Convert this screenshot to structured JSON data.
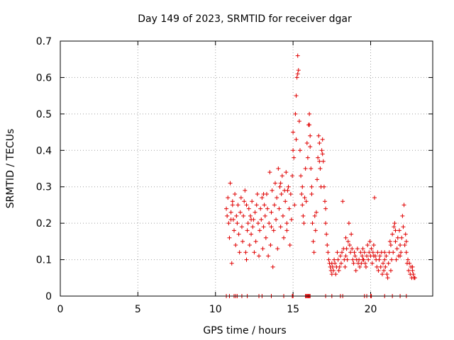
{
  "chart_data": {
    "type": "scatter",
    "title": "Day 149 of 2023, SRMTID for receiver dgar",
    "xlabel": "GPS time / hours",
    "ylabel": "SRMTID / TECUs",
    "xlim": [
      0,
      24
    ],
    "ylim": [
      0,
      0.7
    ],
    "xticks": [
      0,
      5,
      10,
      15,
      20
    ],
    "xtick_labels": [
      "0",
      "5",
      "10",
      "15",
      "20"
    ],
    "yticks": [
      0,
      0.1,
      0.2,
      0.3,
      0.4,
      0.5,
      0.6,
      0.7
    ],
    "ytick_labels": [
      "0",
      "0.1",
      "0.2",
      "0.3",
      "0.4",
      "0.5",
      "0.6",
      "0.7"
    ],
    "grid": true,
    "marker": "+",
    "marker_color": "#e00000",
    "series": [
      {
        "name": "SRMTID",
        "points": [
          [
            10.7,
            0.24
          ],
          [
            10.75,
            0.22
          ],
          [
            10.8,
            0.27
          ],
          [
            10.85,
            0.2
          ],
          [
            10.9,
            0.16
          ],
          [
            10.95,
            0.31
          ],
          [
            11.0,
            0.23
          ],
          [
            11.05,
            0.09
          ],
          [
            11.1,
            0.25
          ],
          [
            11.15,
            0.21
          ],
          [
            11.2,
            0.18
          ],
          [
            11.25,
            0.28
          ],
          [
            11.3,
            0.14
          ],
          [
            11.35,
            0.22
          ],
          [
            11.4,
            0.2
          ],
          [
            11.45,
            0.25
          ],
          [
            11.5,
            0.17
          ],
          [
            11.55,
            0.12
          ],
          [
            11.6,
            0.23
          ],
          [
            11.65,
            0.27
          ],
          [
            11.7,
            0.19
          ],
          [
            11.75,
            0.15
          ],
          [
            11.8,
            0.22
          ],
          [
            11.85,
            0.26
          ],
          [
            11.9,
            0.29
          ],
          [
            11.95,
            0.12
          ],
          [
            12.0,
            0.1
          ],
          [
            12.05,
            0.18
          ],
          [
            12.1,
            0.2
          ],
          [
            12.15,
            0.24
          ],
          [
            12.2,
            0.14
          ],
          [
            12.25,
            0.22
          ],
          [
            12.3,
            0.17
          ],
          [
            12.35,
            0.26
          ],
          [
            12.4,
            0.19
          ],
          [
            12.45,
            0.21
          ],
          [
            12.5,
            0.12
          ],
          [
            12.55,
            0.23
          ],
          [
            12.6,
            0.15
          ],
          [
            12.65,
            0.25
          ],
          [
            12.7,
            0.28
          ],
          [
            12.75,
            0.2
          ],
          [
            12.8,
            0.11
          ],
          [
            12.85,
            0.18
          ],
          [
            12.9,
            0.24
          ],
          [
            12.95,
            0.21
          ],
          [
            13.0,
            0.27
          ],
          [
            13.05,
            0.13
          ],
          [
            13.1,
            0.19
          ],
          [
            13.15,
            0.25
          ],
          [
            13.2,
            0.22
          ],
          [
            13.25,
            0.16
          ],
          [
            13.3,
            0.28
          ],
          [
            13.35,
            0.24
          ],
          [
            13.4,
            0.11
          ],
          [
            13.45,
            0.2
          ],
          [
            13.5,
            0.34
          ],
          [
            13.55,
            0.14
          ],
          [
            13.6,
            0.23
          ],
          [
            13.65,
            0.29
          ],
          [
            13.7,
            0.08
          ],
          [
            13.75,
            0.18
          ],
          [
            13.8,
            0.25
          ],
          [
            13.85,
            0.31
          ],
          [
            13.9,
            0.21
          ],
          [
            13.95,
            0.27
          ],
          [
            14.0,
            0.13
          ],
          [
            14.05,
            0.35
          ],
          [
            14.1,
            0.24
          ],
          [
            14.15,
            0.3
          ],
          [
            14.2,
            0.19
          ],
          [
            14.25,
            0.28
          ],
          [
            14.3,
            0.33
          ],
          [
            14.35,
            0.22
          ],
          [
            14.4,
            0.16
          ],
          [
            14.45,
            0.29
          ],
          [
            14.5,
            0.26
          ],
          [
            14.55,
            0.34
          ],
          [
            14.6,
            0.2
          ],
          [
            14.65,
            0.29
          ],
          [
            14.7,
            0.3
          ],
          [
            14.75,
            0.24
          ],
          [
            14.8,
            0.14
          ],
          [
            14.85,
            0.28
          ],
          [
            14.9,
            0.21
          ],
          [
            14.95,
            0.33
          ],
          [
            15.0,
            0.45
          ],
          [
            15.05,
            0.38
          ],
          [
            15.1,
            0.25
          ],
          [
            15.15,
            0.5
          ],
          [
            15.2,
            0.55
          ],
          [
            15.25,
            0.6
          ],
          [
            15.3,
            0.66
          ],
          [
            15.35,
            0.62
          ],
          [
            15.4,
            0.48
          ],
          [
            15.45,
            0.4
          ],
          [
            15.5,
            0.33
          ],
          [
            15.55,
            0.28
          ],
          [
            15.6,
            0.3
          ],
          [
            15.65,
            0.22
          ],
          [
            15.7,
            0.2
          ],
          [
            15.75,
            0.27
          ],
          [
            15.8,
            0.35
          ],
          [
            15.85,
            0.26
          ],
          [
            15.9,
            0.42
          ],
          [
            15.95,
            0.38
          ],
          [
            16.0,
            0.47
          ],
          [
            16.05,
            0.5
          ],
          [
            16.1,
            0.44
          ],
          [
            16.15,
            0.35
          ],
          [
            16.2,
            0.28
          ],
          [
            16.25,
            0.2
          ],
          [
            16.3,
            0.15
          ],
          [
            16.35,
            0.12
          ],
          [
            16.4,
            0.22
          ],
          [
            16.45,
            0.18
          ],
          [
            16.5,
            0.23
          ],
          [
            16.55,
            0.32
          ],
          [
            16.6,
            0.38
          ],
          [
            16.65,
            0.44
          ],
          [
            16.7,
            0.42
          ],
          [
            16.75,
            0.35
          ],
          [
            16.8,
            0.3
          ],
          [
            16.85,
            0.4
          ],
          [
            16.9,
            0.43
          ],
          [
            16.95,
            0.37
          ],
          [
            17.0,
            0.3
          ],
          [
            17.05,
            0.26
          ],
          [
            17.1,
            0.2
          ],
          [
            17.15,
            0.17
          ],
          [
            17.2,
            0.14
          ],
          [
            17.25,
            0.12
          ],
          [
            17.3,
            0.1
          ],
          [
            17.35,
            0.09
          ],
          [
            17.4,
            0.08
          ],
          [
            17.45,
            0.07
          ],
          [
            17.5,
            0.06
          ],
          [
            17.55,
            0.08
          ],
          [
            17.6,
            0.07
          ],
          [
            17.65,
            0.1
          ],
          [
            17.7,
            0.09
          ],
          [
            17.75,
            0.06
          ],
          [
            17.8,
            0.08
          ],
          [
            17.85,
            0.12
          ],
          [
            17.9,
            0.1
          ],
          [
            17.95,
            0.07
          ],
          [
            18.0,
            0.08
          ],
          [
            18.05,
            0.11
          ],
          [
            18.1,
            0.09
          ],
          [
            18.15,
            0.12
          ],
          [
            18.2,
            0.26
          ],
          [
            18.25,
            0.13
          ],
          [
            18.3,
            0.1
          ],
          [
            18.35,
            0.08
          ],
          [
            18.4,
            0.11
          ],
          [
            18.45,
            0.13
          ],
          [
            18.5,
            0.1
          ],
          [
            18.55,
            0.15
          ],
          [
            18.6,
            0.2
          ],
          [
            18.65,
            0.14
          ],
          [
            18.7,
            0.12
          ],
          [
            18.75,
            0.17
          ],
          [
            18.8,
            0.13
          ],
          [
            18.85,
            0.1
          ],
          [
            18.9,
            0.09
          ],
          [
            18.95,
            0.12
          ],
          [
            19.0,
            0.11
          ],
          [
            19.05,
            0.07
          ],
          [
            19.1,
            0.1
          ],
          [
            19.15,
            0.13
          ],
          [
            19.2,
            0.09
          ],
          [
            19.25,
            0.1
          ],
          [
            19.3,
            0.08
          ],
          [
            19.35,
            0.12
          ],
          [
            19.4,
            0.09
          ],
          [
            19.45,
            0.11
          ],
          [
            19.5,
            0.13
          ],
          [
            19.55,
            0.1
          ],
          [
            19.6,
            0.12
          ],
          [
            19.65,
            0.09
          ],
          [
            19.7,
            0.08
          ],
          [
            19.75,
            0.11
          ],
          [
            19.8,
            0.14
          ],
          [
            19.85,
            0.1
          ],
          [
            19.9,
            0.12
          ],
          [
            19.95,
            0.15
          ],
          [
            20.0,
            0.11
          ],
          [
            20.05,
            0.13
          ],
          [
            20.1,
            0.09
          ],
          [
            20.15,
            0.12
          ],
          [
            20.2,
            0.14
          ],
          [
            20.25,
            0.27
          ],
          [
            20.3,
            0.11
          ],
          [
            20.35,
            0.1
          ],
          [
            20.4,
            0.08
          ],
          [
            20.45,
            0.12
          ],
          [
            20.5,
            0.07
          ],
          [
            20.55,
            0.1
          ],
          [
            20.6,
            0.11
          ],
          [
            20.65,
            0.08
          ],
          [
            20.7,
            0.12
          ],
          [
            20.75,
            0.06
          ],
          [
            20.8,
            0.09
          ],
          [
            20.85,
            0.07
          ],
          [
            20.9,
            0.1
          ],
          [
            20.95,
            0.08
          ],
          [
            21.0,
            0.11
          ],
          [
            21.05,
            0.06
          ],
          [
            21.1,
            0.05
          ],
          [
            21.15,
            0.09
          ],
          [
            21.2,
            0.12
          ],
          [
            21.25,
            0.15
          ],
          [
            21.3,
            0.14
          ],
          [
            21.35,
            0.1
          ],
          [
            21.4,
            0.17
          ],
          [
            21.45,
            0.12
          ],
          [
            21.5,
            0.19
          ],
          [
            21.55,
            0.2
          ],
          [
            21.6,
            0.15
          ],
          [
            21.65,
            0.1
          ],
          [
            21.7,
            0.13
          ],
          [
            21.75,
            0.16
          ],
          [
            21.8,
            0.11
          ],
          [
            21.85,
            0.18
          ],
          [
            21.9,
            0.14
          ],
          [
            21.95,
            0.12
          ],
          [
            22.0,
            0.16
          ],
          [
            22.05,
            0.22
          ],
          [
            22.1,
            0.19
          ],
          [
            22.15,
            0.25
          ],
          [
            22.2,
            0.14
          ],
          [
            22.25,
            0.17
          ],
          [
            22.3,
            0.12
          ],
          [
            22.35,
            0.09
          ],
          [
            22.4,
            0.1
          ],
          [
            22.45,
            0.07
          ],
          [
            22.5,
            0.09
          ],
          [
            22.55,
            0.06
          ],
          [
            22.6,
            0.08
          ],
          [
            22.65,
            0.05
          ],
          [
            22.7,
            0.07
          ],
          [
            22.75,
            0.06
          ],
          [
            22.8,
            0.05
          ],
          [
            22.85,
            0.05
          ],
          [
            11.0,
            0.21
          ],
          [
            11.1,
            0.26
          ],
          [
            12.0,
            0.25
          ],
          [
            12.3,
            0.21
          ],
          [
            13.1,
            0.28
          ],
          [
            13.6,
            0.19
          ],
          [
            14.2,
            0.31
          ],
          [
            14.6,
            0.18
          ],
          [
            15.0,
            0.4
          ],
          [
            15.2,
            0.43
          ],
          [
            15.3,
            0.61
          ],
          [
            15.6,
            0.25
          ],
          [
            16.05,
            0.47
          ],
          [
            16.1,
            0.41
          ],
          [
            16.2,
            0.3
          ],
          [
            16.7,
            0.37
          ],
          [
            16.9,
            0.39
          ],
          [
            17.1,
            0.24
          ],
          [
            17.5,
            0.09
          ],
          [
            18.4,
            0.16
          ],
          [
            19.5,
            0.1
          ],
          [
            20.2,
            0.11
          ],
          [
            20.9,
            0.12
          ],
          [
            21.3,
            0.07
          ],
          [
            21.6,
            0.18
          ],
          [
            21.9,
            0.11
          ],
          [
            22.3,
            0.15
          ],
          [
            22.7,
            0.08
          ],
          [
            10.7,
            0.0
          ],
          [
            10.9,
            0.0
          ],
          [
            11.2,
            0.0
          ],
          [
            11.3,
            0.0
          ],
          [
            11.4,
            0.0
          ],
          [
            11.7,
            0.0
          ],
          [
            12.05,
            0.0
          ],
          [
            12.8,
            0.0
          ],
          [
            13.0,
            0.0
          ],
          [
            13.6,
            0.0
          ],
          [
            14.4,
            0.0
          ],
          [
            14.95,
            0.0
          ],
          [
            15.0,
            0.0
          ],
          [
            15.8,
            0.0
          ],
          [
            15.85,
            0.0
          ],
          [
            15.9,
            0.0
          ],
          [
            15.95,
            0.0
          ],
          [
            16.0,
            0.0
          ],
          [
            16.05,
            0.0
          ],
          [
            16.1,
            0.0
          ],
          [
            17.1,
            0.0
          ],
          [
            17.5,
            0.0
          ],
          [
            18.05,
            0.0
          ],
          [
            18.2,
            0.0
          ],
          [
            19.6,
            0.0
          ],
          [
            19.75,
            0.0
          ],
          [
            20.0,
            0.0
          ],
          [
            20.05,
            0.0
          ],
          [
            20.9,
            0.0
          ],
          [
            21.4,
            0.0
          ],
          [
            21.9,
            0.0
          ],
          [
            22.3,
            0.0
          ]
        ]
      }
    ]
  }
}
